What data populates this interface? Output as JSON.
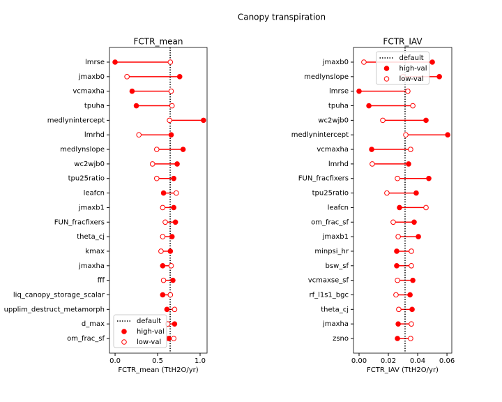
{
  "title": "Canopy transpiration",
  "chart_data": [
    {
      "type": "dumbbell",
      "title": "FCTR_mean",
      "x_label": "FCTR_mean (TtH2O/yr)",
      "categories": [
        "lmrse",
        "jmaxb0",
        "vcmaxha",
        "tpuha",
        "medlynintercept",
        "lmrhd",
        "medlynslope",
        "wc2wjb0",
        "tpu25ratio",
        "leafcn",
        "jmaxb1",
        "FUN_fracfixers",
        "theta_cj",
        "kmax",
        "jmaxha",
        "fff",
        "liq_canopy_storage_scalar",
        "upplim_destruct_metamorph",
        "d_max",
        "om_frac_sf"
      ],
      "series": [
        {
          "name": "high-val",
          "color": "#ff0000",
          "marker": "filled",
          "values": [
            0.0,
            0.76,
            0.2,
            0.25,
            1.04,
            0.66,
            0.8,
            0.73,
            0.69,
            0.57,
            0.69,
            0.71,
            0.67,
            0.65,
            0.56,
            0.68,
            0.56,
            0.61,
            0.7,
            0.63
          ]
        },
        {
          "name": "low-val",
          "color": "#ff0000",
          "marker": "open",
          "values": [
            0.65,
            0.14,
            0.66,
            0.67,
            0.64,
            0.28,
            0.49,
            0.44,
            0.49,
            0.72,
            0.56,
            0.59,
            0.56,
            0.54,
            0.66,
            0.57,
            0.65,
            0.7,
            0.62,
            0.69
          ]
        }
      ],
      "reference": {
        "name": "default",
        "value": 0.648,
        "color": "#000000"
      },
      "xlim": [
        -0.066,
        1.082
      ],
      "xticks": [
        {
          "value": 0,
          "label": "0.0"
        },
        {
          "value": 0.5,
          "label": "0.5"
        },
        {
          "value": 1,
          "label": "1.0"
        }
      ],
      "legend": "lower left"
    },
    {
      "type": "dumbbell",
      "title": "FCTR_IAV",
      "x_label": "FCTR_IAV (TtH2O/yr)",
      "categories": [
        "jmaxb0",
        "medlynslope",
        "lmrse",
        "tpuha",
        "wc2wjb0",
        "medlynintercept",
        "vcmaxha",
        "lmrhd",
        "FUN_fracfixers",
        "tpu25ratio",
        "leafcn",
        "om_frac_sf",
        "jmaxb1",
        "minpsi_hr",
        "bsw_sf",
        "vcmaxse_sf",
        "rf_l1s1_bgc",
        "theta_cj",
        "jmaxha",
        "zsno"
      ],
      "series": [
        {
          "name": "high-val",
          "color": "#ff0000",
          "marker": "filled",
          "values": [
            0.05,
            0.0548,
            0.0,
            0.0067,
            0.0457,
            0.0605,
            0.0086,
            0.0338,
            0.0476,
            0.039,
            0.0276,
            0.0376,
            0.0405,
            0.0257,
            0.0257,
            0.0367,
            0.0348,
            0.0362,
            0.0267,
            0.0262
          ]
        },
        {
          "name": "low-val",
          "color": "#ff0000",
          "marker": "open",
          "values": [
            0.0033,
            0.03,
            0.0333,
            0.0367,
            0.0162,
            0.0319,
            0.0352,
            0.009,
            0.0262,
            0.019,
            0.0457,
            0.0233,
            0.0267,
            0.0357,
            0.0357,
            0.0262,
            0.0252,
            0.0271,
            0.0357,
            0.0352
          ]
        }
      ],
      "reference": {
        "name": "default",
        "value": 0.0314,
        "color": "#000000"
      },
      "xlim": [
        -0.0038,
        0.0633
      ],
      "xticks": [
        {
          "value": 0,
          "label": "0.00"
        },
        {
          "value": 0.02,
          "label": "0.02"
        },
        {
          "value": 0.04,
          "label": "0.04"
        },
        {
          "value": 0.06,
          "label": "0.06"
        }
      ],
      "legend": "upper center"
    }
  ]
}
